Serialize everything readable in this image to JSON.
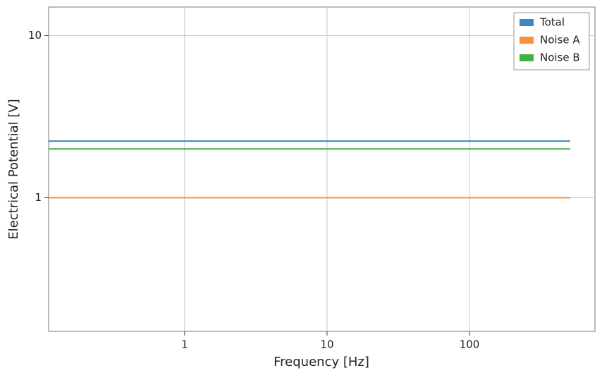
{
  "chart_data": {
    "type": "line",
    "x_label": "Frequency [Hz]",
    "y_label": "Electrical Potential [V]",
    "x": [
      0.111,
      510
    ],
    "series": [
      {
        "name": "Total",
        "color": "#3f87c0",
        "values": [
          2.236,
          2.236
        ]
      },
      {
        "name": "Noise A",
        "color": "#f7913d",
        "values": [
          1,
          1
        ]
      },
      {
        "name": "Noise B",
        "color": "#45b045",
        "values": [
          2,
          2
        ]
      }
    ],
    "xlim": [
      0.111,
      760
    ],
    "ylim": [
      0.15,
      15
    ],
    "xticks": [
      1,
      10,
      100
    ],
    "yticks": [
      1,
      10
    ],
    "xscale": "log",
    "yscale": "log",
    "grid": true,
    "legend": "upper right"
  }
}
